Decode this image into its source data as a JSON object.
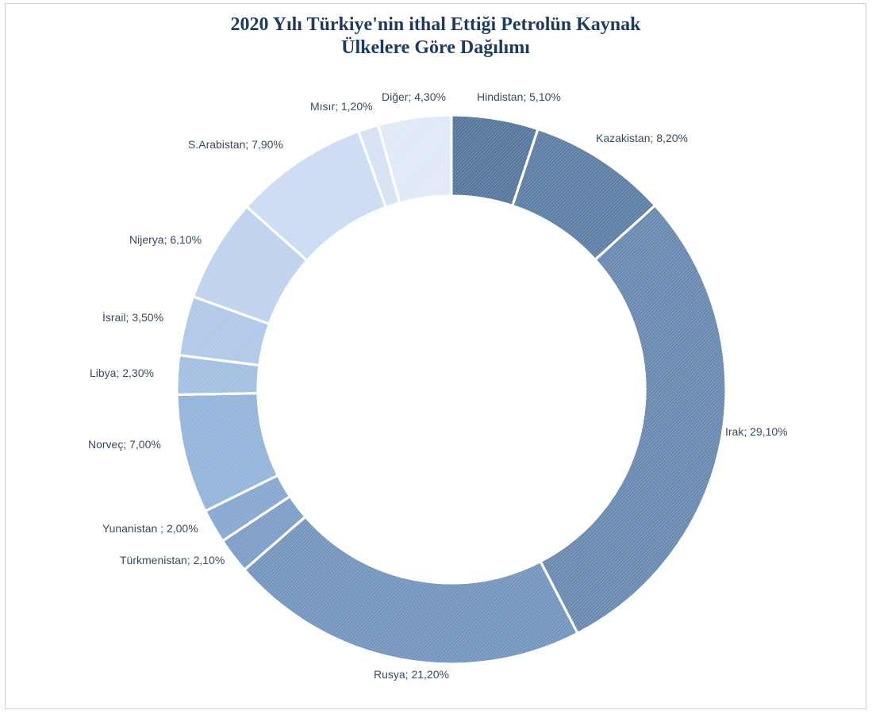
{
  "chart_data": {
    "type": "pie",
    "variant": "donut",
    "title_lines": [
      "2020 Yılı Türkiye'nin  ithal Ettiği Petrolün Kaynak",
      "Ülkelere Göre Dağılımı"
    ],
    "slices": [
      {
        "label": "Hindistan; 5,10%",
        "value": 5.1,
        "color": "#56779c"
      },
      {
        "label": "Kazakistan; 8,20%",
        "value": 8.2,
        "color": "#5d7ea5"
      },
      {
        "label": "Irak; 29,10%",
        "value": 29.1,
        "color": "#6a89b0"
      },
      {
        "label": "Rusya; 21,20%",
        "value": 21.2,
        "color": "#7495bd"
      },
      {
        "label": "Türkmenistan; 2,10%",
        "value": 2.1,
        "color": "#7c9dc6"
      },
      {
        "label": "Yunanistan ; 2,00%",
        "value": 2.0,
        "color": "#86a7cf"
      },
      {
        "label": "Norveç; 7,00%",
        "value": 7.0,
        "color": "#93b4da"
      },
      {
        "label": "Libya; 2,30%",
        "value": 2.3,
        "color": "#a2bfe2"
      },
      {
        "label": "İsrail; 3,50%",
        "value": 3.5,
        "color": "#b0c8e8"
      },
      {
        "label": "Nijerya; 6,10%",
        "value": 6.1,
        "color": "#bed2ed"
      },
      {
        "label": "S.Arabistan; 7,90%",
        "value": 7.9,
        "color": "#cbdbf1"
      },
      {
        "label": "Mısır; 1,20%",
        "value": 1.2,
        "color": "#d6e2f4"
      },
      {
        "label": "Diğer; 4,30%",
        "value": 4.3,
        "color": "#e0e9f7"
      }
    ],
    "legend": "none",
    "start_angle": "12 o'clock, clockwise"
  }
}
